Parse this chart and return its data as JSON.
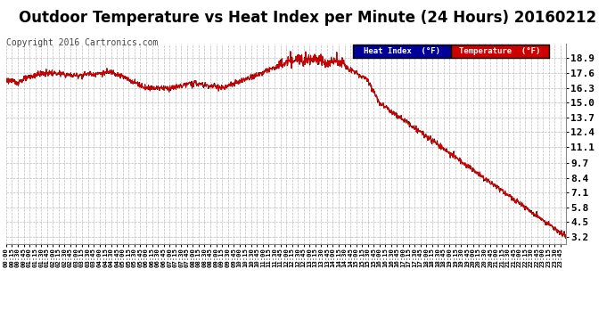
{
  "title": "Outdoor Temperature vs Heat Index per Minute (24 Hours) 20160212",
  "copyright": "Copyright 2016 Cartronics.com",
  "legend_heat_index": "Heat Index  (°F)",
  "legend_temperature": "Temperature  (°F)",
  "legend_heat_index_bg": "#000099",
  "legend_temperature_bg": "#cc0000",
  "yticks": [
    3.2,
    4.5,
    5.8,
    7.1,
    8.4,
    9.7,
    11.1,
    12.4,
    13.7,
    15.0,
    16.3,
    17.6,
    18.9
  ],
  "ylim": [
    2.6,
    20.2
  ],
  "background_color": "#ffffff",
  "grid_color": "#bbbbbb",
  "line_color_temp": "#cc0000",
  "line_color_heat": "#000000",
  "title_fontsize": 13,
  "copyright_fontsize": 7.5
}
